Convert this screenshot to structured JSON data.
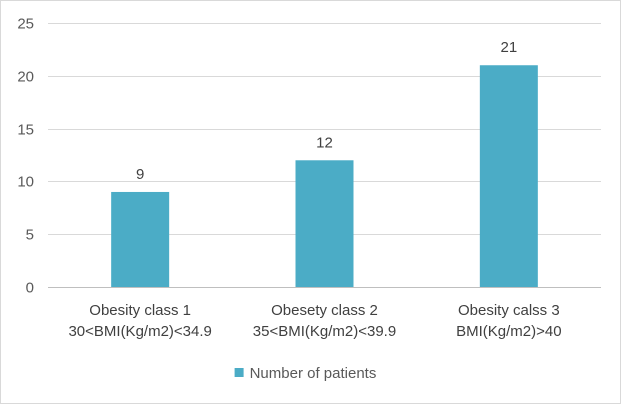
{
  "chart_data": {
    "type": "bar",
    "categories": [
      [
        "Obesity class  1",
        "30<BMI(Kg/m2)<34.9"
      ],
      [
        "Obesety class 2",
        "35<BMI(Kg/m2)<39.9"
      ],
      [
        "Obesity calss 3",
        "BMI(Kg/m2)>40"
      ]
    ],
    "series": [
      {
        "name": "Number of patients",
        "values": [
          9,
          12,
          21
        ]
      }
    ],
    "data_labels": [
      "9",
      "12",
      "21"
    ],
    "ylim": [
      0,
      25
    ],
    "yticks": [
      0,
      5,
      10,
      15,
      20,
      25
    ],
    "grid": true,
    "legend": "bottom",
    "colors": {
      "bar": "#4BACC6",
      "grid": "#d9d9d9",
      "axis": "#bfbfbf"
    }
  }
}
